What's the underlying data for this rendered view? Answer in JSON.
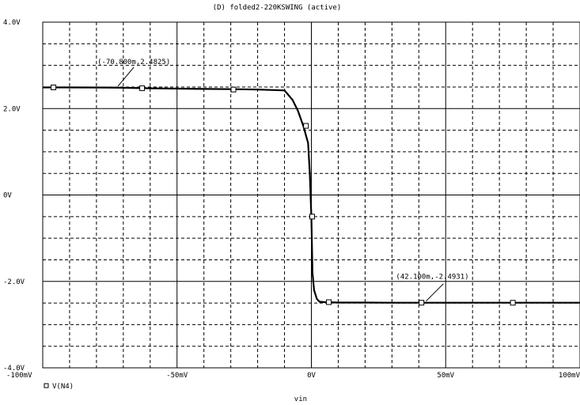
{
  "chart_data": {
    "type": "line",
    "title": "(D) folded2-220KSWING (active)",
    "xlabel": "vin",
    "ylabel": "",
    "xlim": [
      -100,
      100
    ],
    "ylim": [
      -4.0,
      4.0
    ],
    "x_unit": "mV",
    "y_unit": "V",
    "grid": true,
    "legend_position": "bottom-left",
    "x_ticks": [
      "-100mV",
      "-50mV",
      "0V",
      "50mV",
      "100mV"
    ],
    "y_ticks": [
      "4.0V",
      "2.0V",
      "0V",
      "-2.0V",
      "-4.0V"
    ],
    "series": [
      {
        "name": "V(N4)",
        "marker": "square",
        "x": [
          -100,
          -90,
          -80,
          -70.8,
          -60,
          -40,
          -30,
          -20,
          -10,
          -7,
          -5,
          -3,
          -1.2,
          -0.6,
          0,
          0.4,
          1,
          2,
          3,
          5,
          10,
          20,
          30,
          42.1,
          50,
          60,
          70,
          80,
          90,
          100
        ],
        "y": [
          2.49,
          2.49,
          2.488,
          2.4825,
          2.47,
          2.455,
          2.45,
          2.44,
          2.42,
          2.2,
          1.95,
          1.6,
          1.2,
          0.5,
          -0.5,
          -1.8,
          -2.2,
          -2.4,
          -2.47,
          -2.48,
          -2.49,
          -2.49,
          -2.493,
          -2.4931,
          -2.494,
          -2.494,
          -2.494,
          -2.494,
          -2.494,
          -2.494
        ],
        "marker_points": [
          [
            -96,
            2.49
          ],
          [
            -63,
            2.47
          ],
          [
            -29,
            2.44
          ],
          [
            -2,
            1.6
          ],
          [
            0.3,
            -0.5
          ],
          [
            6.5,
            -2.48
          ],
          [
            41,
            -2.493
          ],
          [
            75,
            -2.494
          ]
        ]
      }
    ],
    "annotations": [
      {
        "text": "(-70.800m,2.4825)",
        "x": -70.8,
        "y": 2.4825
      },
      {
        "text": "(42.100m,-2.4931)",
        "x": 42.1,
        "y": -2.4931
      }
    ]
  }
}
